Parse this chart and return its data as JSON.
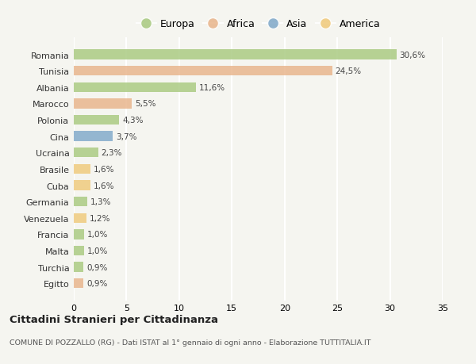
{
  "countries": [
    "Romania",
    "Tunisia",
    "Albania",
    "Marocco",
    "Polonia",
    "Cina",
    "Ucraina",
    "Brasile",
    "Cuba",
    "Germania",
    "Venezuela",
    "Francia",
    "Malta",
    "Turchia",
    "Egitto"
  ],
  "values": [
    30.6,
    24.5,
    11.6,
    5.5,
    4.3,
    3.7,
    2.3,
    1.6,
    1.6,
    1.3,
    1.2,
    1.0,
    1.0,
    0.9,
    0.9
  ],
  "labels": [
    "30,6%",
    "24,5%",
    "11,6%",
    "5,5%",
    "4,3%",
    "3,7%",
    "2,3%",
    "1,6%",
    "1,6%",
    "1,3%",
    "1,2%",
    "1,0%",
    "1,0%",
    "0,9%",
    "0,9%"
  ],
  "colors": [
    "#a8c97f",
    "#e8b48a",
    "#a8c97f",
    "#e8b48a",
    "#a8c97f",
    "#7fa8c9",
    "#a8c97f",
    "#f0c97a",
    "#f0c97a",
    "#a8c97f",
    "#f0c97a",
    "#a8c97f",
    "#a8c97f",
    "#a8c97f",
    "#e8b48a"
  ],
  "legend": [
    {
      "label": "Europa",
      "color": "#a8c97f"
    },
    {
      "label": "Africa",
      "color": "#e8b48a"
    },
    {
      "label": "Asia",
      "color": "#7fa8c9"
    },
    {
      "label": "America",
      "color": "#f0c97a"
    }
  ],
  "title": "Cittadini Stranieri per Cittadinanza",
  "subtitle": "COMUNE DI POZZALLO (RG) - Dati ISTAT al 1° gennaio di ogni anno - Elaborazione TUTTITALIA.IT",
  "xlim": [
    0,
    35
  ],
  "xticks": [
    0,
    5,
    10,
    15,
    20,
    25,
    30,
    35
  ],
  "background_color": "#f5f5f0",
  "bar_height": 0.6
}
